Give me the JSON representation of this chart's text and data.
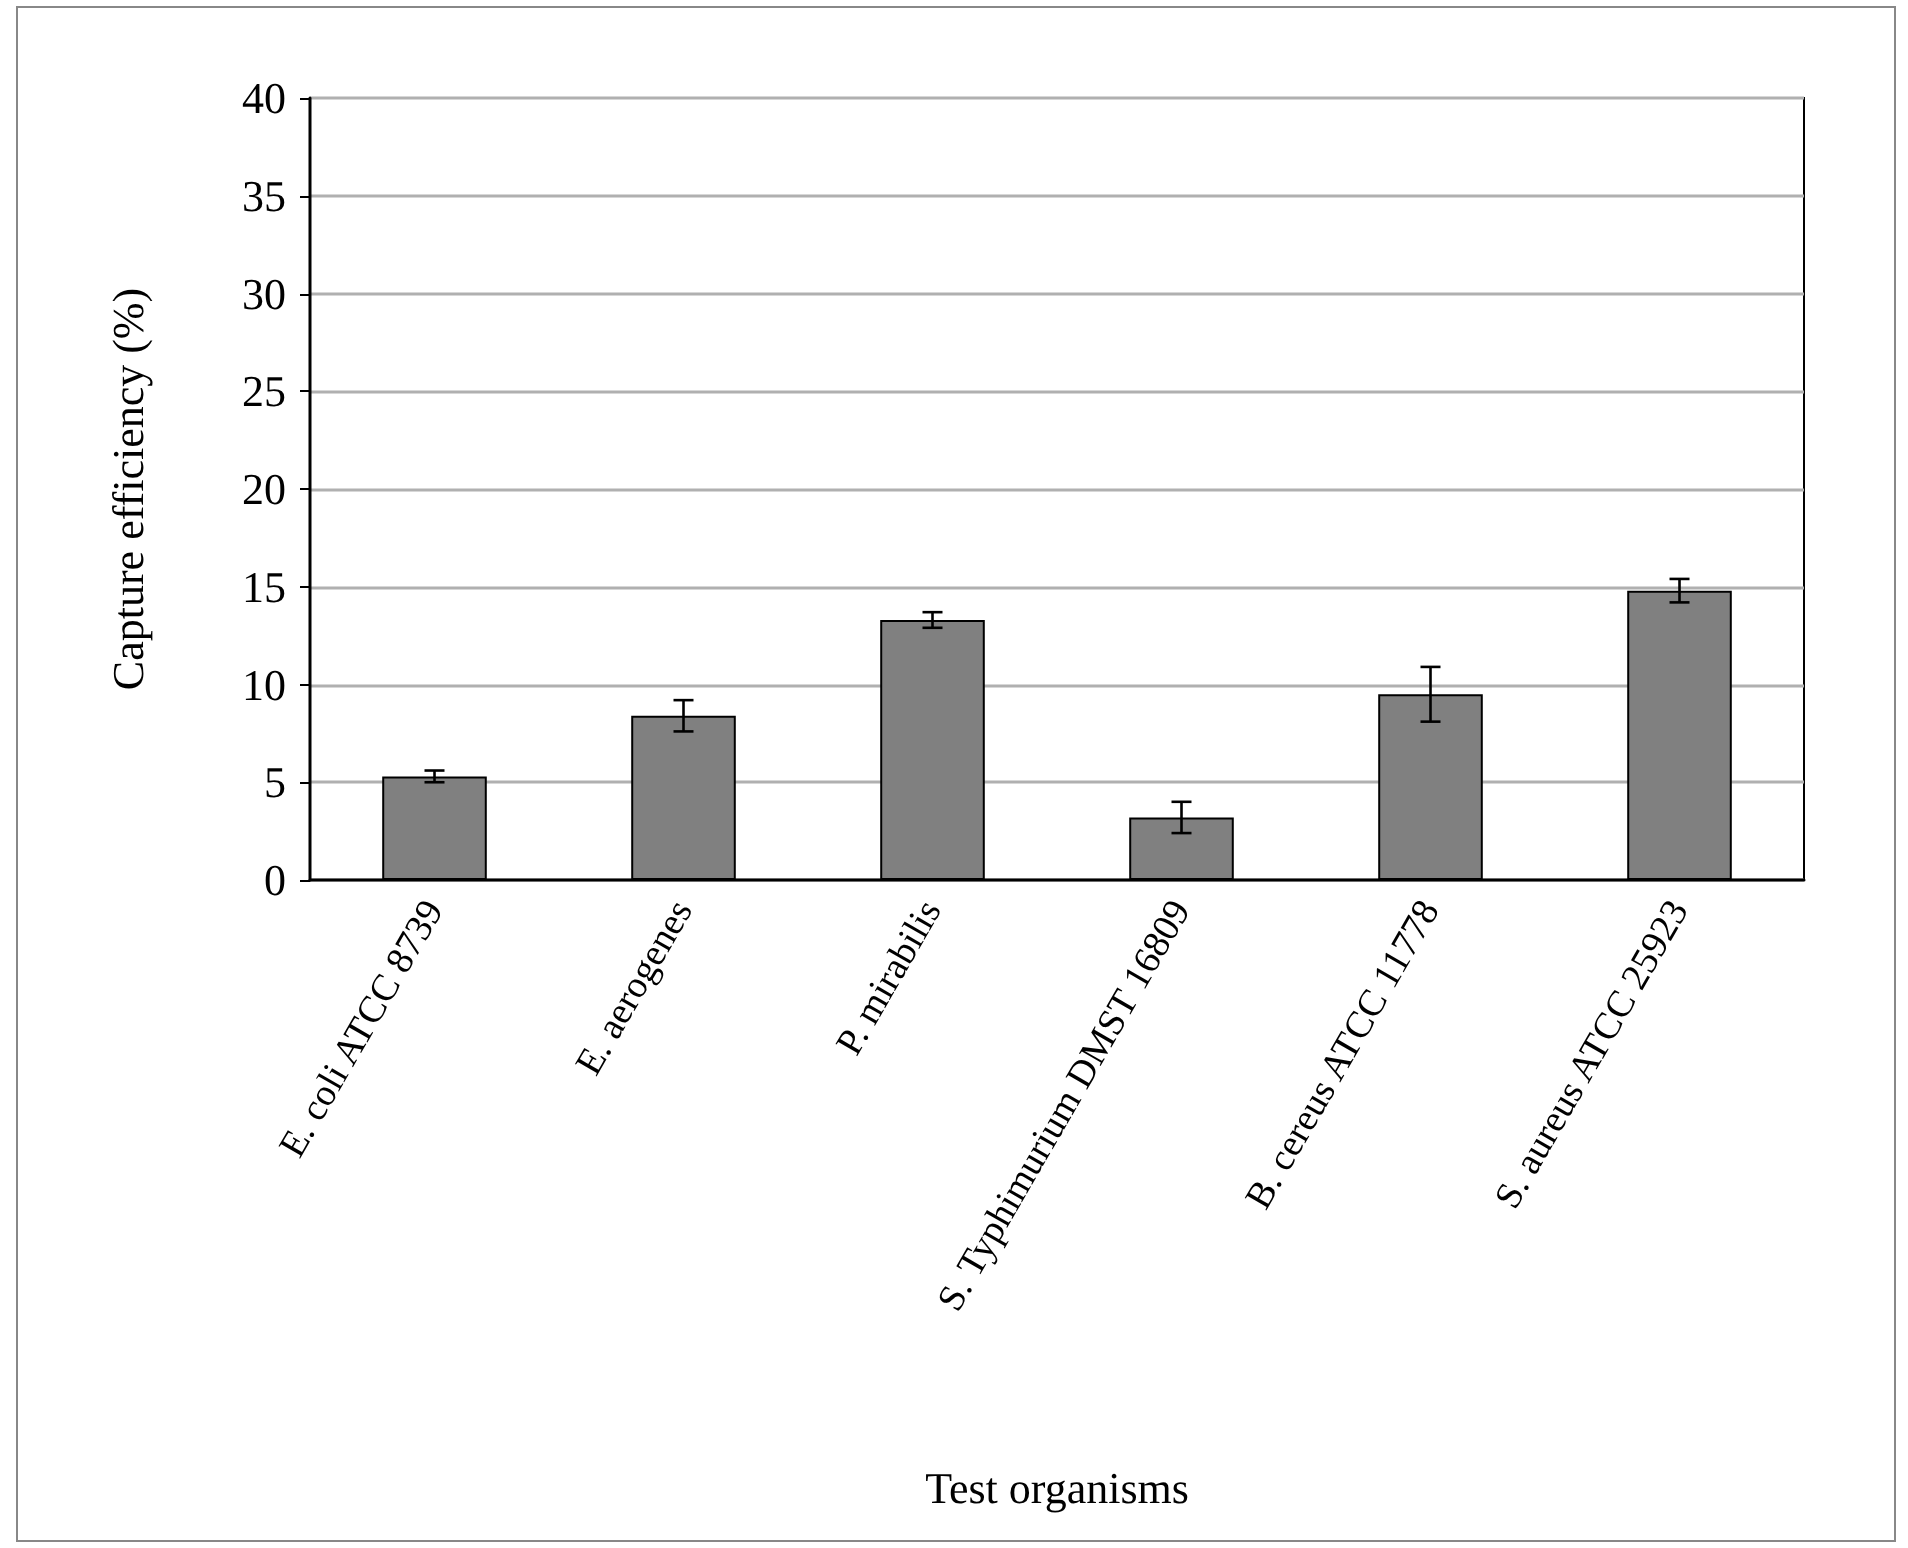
{
  "chart_data": {
    "type": "bar",
    "xlabel": "Test organisms",
    "ylabel": "Capture efficiency (%)",
    "categories": [
      "E. coli ATCC 8739",
      "E. aerogenes",
      "P. mirabilis",
      "S. Typhimurium DMST 16809",
      "B. cereus ATCC 11778",
      "S. aureus ATCC 25923"
    ],
    "values": [
      5.3,
      8.4,
      13.3,
      3.2,
      9.5,
      14.8
    ],
    "errors": [
      0.3,
      0.8,
      0.4,
      0.8,
      1.4,
      0.6
    ],
    "color": "#808080",
    "ylim": [
      0,
      40
    ],
    "yticks": [
      0,
      5,
      10,
      15,
      20,
      25,
      30,
      35,
      40
    ],
    "grid": "y"
  }
}
